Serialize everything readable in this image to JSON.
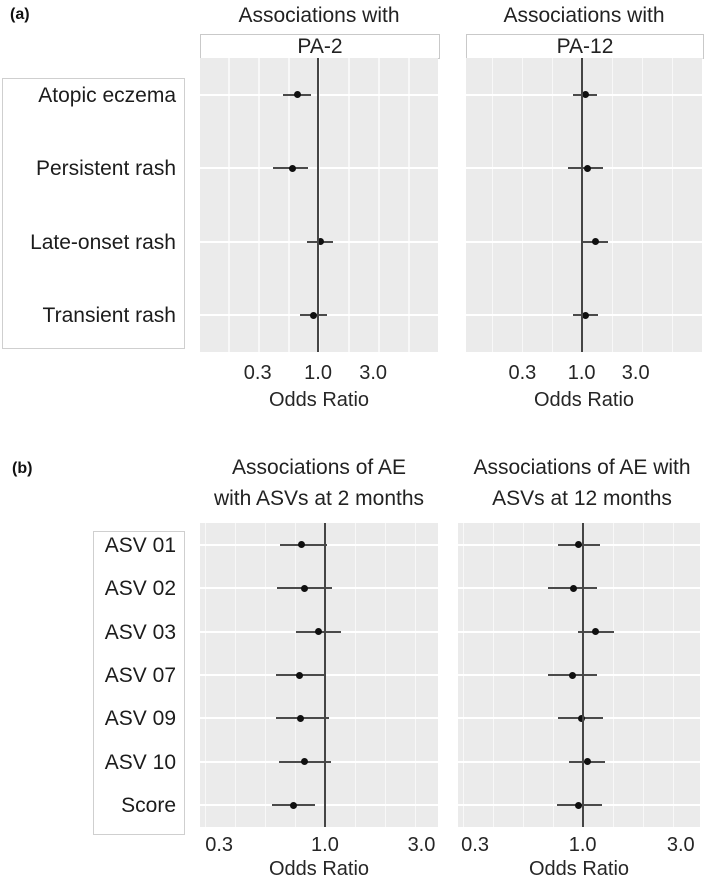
{
  "panel_a": {
    "tag": "(a)",
    "categories": [
      "Atopic eczema",
      "Persistent rash",
      "Late-onset rash",
      "Transient rash"
    ],
    "xlabel": "Odds Ratio",
    "x_ticks": [
      "0.3",
      "1.0",
      "3.0"
    ],
    "plots": [
      {
        "id": "a1",
        "title_top": "Associations with",
        "strip": "PA-2",
        "or": [
          0.66,
          0.6,
          1.04,
          0.91
        ],
        "lo": [
          0.5,
          0.41,
          0.8,
          0.7
        ],
        "hi": [
          0.87,
          0.82,
          1.35,
          1.2
        ]
      },
      {
        "id": "a2",
        "title_top": "Associations with",
        "strip": "PA-12",
        "or": [
          1.08,
          1.13,
          1.32,
          1.08
        ],
        "lo": [
          0.84,
          0.76,
          1.0,
          0.84
        ],
        "hi": [
          1.38,
          1.55,
          1.72,
          1.4
        ]
      }
    ]
  },
  "panel_b": {
    "tag": "(b)",
    "categories": [
      "ASV 01",
      "ASV 02",
      "ASV 03",
      "ASV 07",
      "ASV 09",
      "ASV 10",
      "Score"
    ],
    "xlabel": "Odds Ratio",
    "x_ticks": [
      "0.3",
      "1.0",
      "3.0"
    ],
    "plots": [
      {
        "id": "b1",
        "title_lines": [
          "Associations of AE",
          "with ASVs at 2 months"
        ],
        "or": [
          0.77,
          0.79,
          0.93,
          0.75,
          0.76,
          0.79,
          0.7
        ],
        "lo": [
          0.6,
          0.58,
          0.72,
          0.57,
          0.57,
          0.59,
          0.55
        ],
        "hi": [
          1.02,
          1.08,
          1.2,
          0.99,
          1.05,
          1.07,
          0.89
        ]
      },
      {
        "id": "b2",
        "title_lines": [
          "Associations of AE with",
          "ASVs at 12 months"
        ],
        "or": [
          0.96,
          0.9,
          1.16,
          0.89,
          0.99,
          1.06,
          0.96
        ],
        "lo": [
          0.76,
          0.68,
          0.95,
          0.68,
          0.76,
          0.86,
          0.75
        ],
        "hi": [
          1.21,
          1.17,
          1.42,
          1.17,
          1.25,
          1.29,
          1.24
        ]
      }
    ]
  },
  "chart_data": [
    {
      "type": "scatter",
      "subtype": "forest-plot",
      "title": "Associations with PA-2",
      "categories": [
        "Atopic eczema",
        "Persistent rash",
        "Late-onset rash",
        "Transient rash"
      ],
      "series": [
        {
          "name": "Odds Ratio",
          "values": [
            0.66,
            0.6,
            1.04,
            0.91
          ]
        },
        {
          "name": "CI lower",
          "values": [
            0.5,
            0.41,
            0.8,
            0.7
          ]
        },
        {
          "name": "CI upper",
          "values": [
            0.87,
            0.82,
            1.35,
            1.2
          ]
        }
      ],
      "xlabel": "Odds Ratio",
      "ylabel": "",
      "x_scale": "log",
      "x_ticks": [
        0.3,
        1.0,
        3.0
      ],
      "xlim": [
        0.12,
        8.0
      ],
      "reference_line_x": 1.0,
      "grid": true,
      "legend": false
    },
    {
      "type": "scatter",
      "subtype": "forest-plot",
      "title": "Associations with PA-12",
      "categories": [
        "Atopic eczema",
        "Persistent rash",
        "Late-onset rash",
        "Transient rash"
      ],
      "series": [
        {
          "name": "Odds Ratio",
          "values": [
            1.08,
            1.13,
            1.32,
            1.08
          ]
        },
        {
          "name": "CI lower",
          "values": [
            0.84,
            0.76,
            1.0,
            0.84
          ]
        },
        {
          "name": "CI upper",
          "values": [
            1.38,
            1.55,
            1.72,
            1.4
          ]
        }
      ],
      "xlabel": "Odds Ratio",
      "ylabel": "",
      "x_scale": "log",
      "x_ticks": [
        0.3,
        1.0,
        3.0
      ],
      "xlim": [
        0.12,
        8.0
      ],
      "reference_line_x": 1.0,
      "grid": true,
      "legend": false
    },
    {
      "type": "scatter",
      "subtype": "forest-plot",
      "title": "Associations of AE with ASVs at 2 months",
      "categories": [
        "ASV 01",
        "ASV 02",
        "ASV 03",
        "ASV 07",
        "ASV 09",
        "ASV 10",
        "Score"
      ],
      "series": [
        {
          "name": "Odds Ratio",
          "values": [
            0.77,
            0.79,
            0.93,
            0.75,
            0.76,
            0.79,
            0.7
          ]
        },
        {
          "name": "CI lower",
          "values": [
            0.6,
            0.58,
            0.72,
            0.57,
            0.57,
            0.59,
            0.55
          ]
        },
        {
          "name": "CI upper",
          "values": [
            1.02,
            1.08,
            1.2,
            0.99,
            1.05,
            1.07,
            0.89
          ]
        }
      ],
      "xlabel": "Odds Ratio",
      "ylabel": "",
      "x_scale": "log",
      "x_ticks": [
        0.3,
        1.0,
        3.0
      ],
      "xlim": [
        0.22,
        4.0
      ],
      "reference_line_x": 1.0,
      "grid": true,
      "legend": false
    },
    {
      "type": "scatter",
      "subtype": "forest-plot",
      "title": "Associations of AE with ASVs at 12 months",
      "categories": [
        "ASV 01",
        "ASV 02",
        "ASV 03",
        "ASV 07",
        "ASV 09",
        "ASV 10",
        "Score"
      ],
      "series": [
        {
          "name": "Odds Ratio",
          "values": [
            0.96,
            0.9,
            1.16,
            0.89,
            0.99,
            1.06,
            0.96
          ]
        },
        {
          "name": "CI lower",
          "values": [
            0.76,
            0.68,
            0.95,
            0.68,
            0.76,
            0.86,
            0.75
          ]
        },
        {
          "name": "CI upper",
          "values": [
            1.21,
            1.17,
            1.42,
            1.17,
            1.25,
            1.29,
            1.24
          ]
        }
      ],
      "xlabel": "Odds Ratio",
      "ylabel": "",
      "x_scale": "log",
      "x_ticks": [
        0.3,
        1.0,
        3.0
      ],
      "xlim": [
        0.22,
        4.0
      ],
      "reference_line_x": 1.0,
      "grid": true,
      "legend": false
    }
  ],
  "colors": {
    "panel_background": "#ebebeb",
    "gridline": "#ffffff",
    "reference_line": "#454545",
    "point": "#101010",
    "ci_line": "#4a4a4a",
    "box_border": "#cfcfcf"
  }
}
